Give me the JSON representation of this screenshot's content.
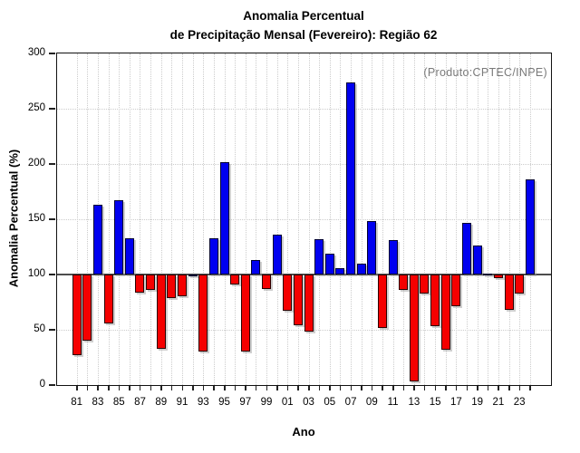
{
  "title": {
    "line1": "Anomalia Percentual",
    "line2": "de Precipitação Mensal (Fevereiro): Região 62"
  },
  "annotation": "(Produto:CPTEC/INPE)",
  "chart_data": {
    "type": "bar",
    "title": "Anomalia Percentual de Precipitação Mensal (Fevereiro): Região 62",
    "xlabel": "Ano",
    "ylabel": "Anomalia Percentual (%)",
    "ylim": [
      0,
      300
    ],
    "yticks": [
      0,
      50,
      100,
      150,
      200,
      250,
      300
    ],
    "baseline": 100,
    "grid": true,
    "legend": "none",
    "x_labels_shown_every": 2,
    "categories": [
      "81",
      "82",
      "83",
      "84",
      "85",
      "86",
      "87",
      "88",
      "89",
      "90",
      "91",
      "92",
      "93",
      "94",
      "95",
      "96",
      "97",
      "98",
      "99",
      "00",
      "01",
      "02",
      "03",
      "04",
      "05",
      "06",
      "07",
      "08",
      "09",
      "10",
      "11",
      "12",
      "13",
      "14",
      "15",
      "16",
      "17",
      "18",
      "19",
      "20",
      "21",
      "22",
      "23",
      "24"
    ],
    "values": [
      27,
      40,
      163,
      56,
      167,
      133,
      84,
      86,
      33,
      79,
      80,
      100,
      30,
      133,
      202,
      91,
      30,
      113,
      87,
      136,
      67,
      54,
      48,
      132,
      119,
      106,
      274,
      110,
      148,
      52,
      131,
      86,
      3,
      83,
      53,
      32,
      71,
      147,
      126,
      101,
      97,
      68,
      83,
      186
    ],
    "colors": {
      "above_baseline": "#0000f0",
      "below_baseline": "#f50000",
      "baseline_line": "#4d4d4d",
      "grid_line": "#cccccc",
      "annotation_text": "#7a7a7a"
    }
  }
}
